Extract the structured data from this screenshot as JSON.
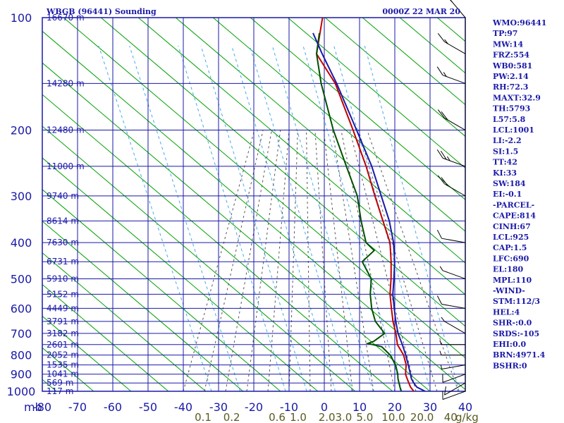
{
  "header": {
    "title": "WBGB (96441) Sounding",
    "timestamp": "0000Z 22 MAR 20"
  },
  "colors": {
    "grid": "#1a1aa8",
    "axis_text": "#1a1aa8",
    "dry_adiabat": "#00a000",
    "moist_adiabat": "#555555",
    "mixing_ratio": "#44aaee",
    "temperature": "#c00000",
    "dewpoint": "#005000",
    "parcel": "#1a1aa8",
    "mixing_text": "#5a5a20",
    "wind": "#000000"
  },
  "chart_data": {
    "type": "line",
    "title": "WBGB (96441) Sounding",
    "xlabel": "",
    "ylabel": "mb",
    "xlim": [
      -80,
      40
    ],
    "ylim": [
      1000,
      100
    ],
    "pressure_ticks": [
      {
        "p": 100,
        "label": "100"
      },
      {
        "p": 200,
        "label": "200"
      },
      {
        "p": 300,
        "label": "300"
      },
      {
        "p": 400,
        "label": "400"
      },
      {
        "p": 500,
        "label": "500"
      },
      {
        "p": 600,
        "label": "600"
      },
      {
        "p": 700,
        "label": "700"
      },
      {
        "p": 800,
        "label": "800"
      },
      {
        "p": 900,
        "label": "900"
      },
      {
        "p": 1000,
        "label": "1000"
      }
    ],
    "temperature_ticks": [
      {
        "t": -80,
        "label": "-80"
      },
      {
        "t": -70,
        "label": "-70"
      },
      {
        "t": -60,
        "label": "-60"
      },
      {
        "t": -50,
        "label": "-50"
      },
      {
        "t": -40,
        "label": "-40"
      },
      {
        "t": -30,
        "label": "-30"
      },
      {
        "t": -20,
        "label": "-20"
      },
      {
        "t": -10,
        "label": "-10"
      },
      {
        "t": 0,
        "label": "0"
      },
      {
        "t": 10,
        "label": "10"
      },
      {
        "t": 20,
        "label": "20"
      },
      {
        "t": 30,
        "label": "30"
      },
      {
        "t": 40,
        "label": "40"
      }
    ],
    "height_labels": [
      {
        "p": 100,
        "label": "16670 m"
      },
      {
        "p": 150,
        "label": "14280 m"
      },
      {
        "p": 200,
        "label": "12480 m"
      },
      {
        "p": 250,
        "label": "11000 m"
      },
      {
        "p": 300,
        "label": "9740 m"
      },
      {
        "p": 350,
        "label": "8614 m"
      },
      {
        "p": 400,
        "label": "7630 m"
      },
      {
        "p": 450,
        "label": "6731 m"
      },
      {
        "p": 500,
        "label": "5910 m"
      },
      {
        "p": 550,
        "label": "5152 m"
      },
      {
        "p": 600,
        "label": "4449 m"
      },
      {
        "p": 650,
        "label": "3791 m"
      },
      {
        "p": 700,
        "label": "3182 m"
      },
      {
        "p": 750,
        "label": "2601 m"
      },
      {
        "p": 800,
        "label": "2052 m"
      },
      {
        "p": 850,
        "label": "1535 m"
      },
      {
        "p": 900,
        "label": "1041 m"
      },
      {
        "p": 950,
        "label": "569 m"
      },
      {
        "p": 1000,
        "label": "117 m"
      }
    ],
    "mixing_ratio_labels": [
      {
        "w": 0.1,
        "label": "0.1"
      },
      {
        "w": 0.2,
        "label": "0.2"
      },
      {
        "w": 0.6,
        "label": "0.6"
      },
      {
        "w": 1.0,
        "label": "1.0"
      },
      {
        "w": 2.0,
        "label": "2.0"
      },
      {
        "w": 3.0,
        "label": "3.0"
      },
      {
        "w": 5.0,
        "label": "5.0"
      },
      {
        "w": 10.0,
        "label": "10.0"
      },
      {
        "w": 20.0,
        "label": "20.0"
      },
      {
        "w": 40.0,
        "label": "40"
      }
    ],
    "mixing_ratio_unit": "g/kg",
    "series": [
      {
        "name": "temperature",
        "points": [
          {
            "p": 1000,
            "t": 25.4
          },
          {
            "p": 975,
            "t": 23.6
          },
          {
            "p": 950,
            "t": 22.2
          },
          {
            "p": 925,
            "t": 20.8
          },
          {
            "p": 900,
            "t": 19.4
          },
          {
            "p": 850,
            "t": 17.6
          },
          {
            "p": 800,
            "t": 14.8
          },
          {
            "p": 750,
            "t": 10.8
          },
          {
            "p": 700,
            "t": 8.0
          },
          {
            "p": 650,
            "t": 4.6
          },
          {
            "p": 600,
            "t": 1.4
          },
          {
            "p": 550,
            "t": -2.0
          },
          {
            "p": 500,
            "t": -5.0
          },
          {
            "p": 450,
            "t": -8.6
          },
          {
            "p": 400,
            "t": -13.0
          },
          {
            "p": 350,
            "t": -19.6
          },
          {
            "p": 300,
            "t": -27.2
          },
          {
            "p": 250,
            "t": -36.0
          },
          {
            "p": 200,
            "t": -47.4
          },
          {
            "p": 150,
            "t": -62.4
          },
          {
            "p": 140,
            "t": -66.8
          },
          {
            "p": 125,
            "t": -74.0
          },
          {
            "p": 100,
            "t": -80.0
          }
        ]
      },
      {
        "name": "dewpoint",
        "points": [
          {
            "p": 1000,
            "t": 21.8
          },
          {
            "p": 975,
            "t": 20.6
          },
          {
            "p": 950,
            "t": 19.4
          },
          {
            "p": 925,
            "t": 18.2
          },
          {
            "p": 900,
            "t": 17.2
          },
          {
            "p": 850,
            "t": 14.6
          },
          {
            "p": 800,
            "t": 11.0
          },
          {
            "p": 760,
            "t": 6.8
          },
          {
            "p": 745,
            "t": 2.2
          },
          {
            "p": 735,
            "t": 3.4
          },
          {
            "p": 700,
            "t": 4.8
          },
          {
            "p": 650,
            "t": -0.4
          },
          {
            "p": 600,
            "t": -4.2
          },
          {
            "p": 550,
            "t": -7.6
          },
          {
            "p": 500,
            "t": -10.6
          },
          {
            "p": 450,
            "t": -16.8
          },
          {
            "p": 420,
            "t": -15.8
          },
          {
            "p": 400,
            "t": -19.8
          },
          {
            "p": 350,
            "t": -25.8
          },
          {
            "p": 300,
            "t": -32.2
          },
          {
            "p": 250,
            "t": -41.6
          },
          {
            "p": 200,
            "t": -53.0
          },
          {
            "p": 150,
            "t": -66.4
          },
          {
            "p": 125,
            "t": -74.0
          },
          {
            "p": 110,
            "t": -77.6
          }
        ]
      },
      {
        "name": "parcel",
        "points": [
          {
            "p": 1000,
            "t": 28.6
          },
          {
            "p": 975,
            "t": 25.4
          },
          {
            "p": 950,
            "t": 23.6
          },
          {
            "p": 925,
            "t": 22.0
          },
          {
            "p": 900,
            "t": 20.8
          },
          {
            "p": 850,
            "t": 18.2
          },
          {
            "p": 800,
            "t": 15.4
          },
          {
            "p": 750,
            "t": 12.2
          },
          {
            "p": 700,
            "t": 8.6
          },
          {
            "p": 650,
            "t": 5.4
          },
          {
            "p": 600,
            "t": 2.2
          },
          {
            "p": 550,
            "t": -1.2
          },
          {
            "p": 500,
            "t": -4.2
          },
          {
            "p": 450,
            "t": -7.6
          },
          {
            "p": 400,
            "t": -12.0
          },
          {
            "p": 350,
            "t": -17.8
          },
          {
            "p": 300,
            "t": -25.4
          },
          {
            "p": 250,
            "t": -34.4
          },
          {
            "p": 200,
            "t": -46.4
          },
          {
            "p": 150,
            "t": -62.0
          },
          {
            "p": 125,
            "t": -72.4
          },
          {
            "p": 110,
            "t": -79.4
          }
        ]
      }
    ]
  },
  "indices": [
    "WMO:96441",
    "TP:97",
    "MW:14",
    "FRZ:554",
    "WB0:581",
    "PW:2.14",
    "RH:72.3",
    "MAXT:32.9",
    "TH:5793",
    "L57:5.8",
    "LCL:1001",
    "LI:-2.2",
    "SI:1.5",
    "TT:42",
    "KI:33",
    "SW:184",
    "EI:-0.1",
    "-PARCEL-",
    "CAPE:814",
    "CINH:67",
    "LCL:925",
    "CAP:1.5",
    "LFC:690",
    "EL:180",
    "MPL:110",
    "-WIND-",
    "STM:112/3",
    "HEL:4",
    "SHR-:0.0",
    "SRDS:-105",
    "EHI:0.0",
    "BRN:4971.4",
    "BSHR:0"
  ],
  "wind_barbs": [
    {
      "p": 1000,
      "dir": 110,
      "spd": 10
    },
    {
      "p": 950,
      "dir": 120,
      "spd": 10
    },
    {
      "p": 900,
      "dir": 110,
      "spd": 10
    },
    {
      "p": 850,
      "dir": 100,
      "spd": 5
    },
    {
      "p": 800,
      "dir": 90,
      "spd": 5
    },
    {
      "p": 750,
      "dir": 90,
      "spd": 5
    },
    {
      "p": 700,
      "dir": 60,
      "spd": 5
    },
    {
      "p": 600,
      "dir": 80,
      "spd": 10
    },
    {
      "p": 500,
      "dir": 70,
      "spd": 5
    },
    {
      "p": 400,
      "dir": 80,
      "spd": 10
    },
    {
      "p": 300,
      "dir": 60,
      "spd": 20
    },
    {
      "p": 250,
      "dir": 70,
      "spd": 25
    },
    {
      "p": 200,
      "dir": 60,
      "spd": 20
    },
    {
      "p": 150,
      "dir": 70,
      "spd": 15
    },
    {
      "p": 125,
      "dir": 60,
      "spd": 15
    },
    {
      "p": 100,
      "dir": 40,
      "spd": 20
    }
  ]
}
